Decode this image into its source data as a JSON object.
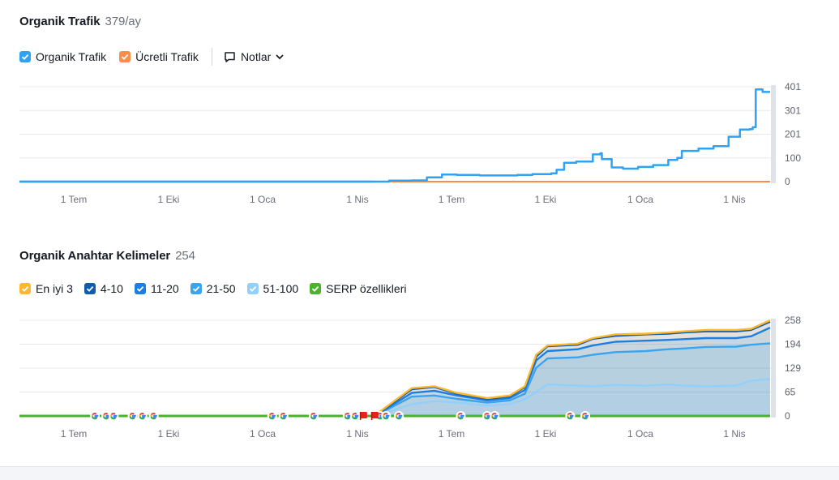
{
  "traffic": {
    "title": "Organik Trafik",
    "count": "379/ay",
    "legend": [
      {
        "label": "Organik Trafik",
        "color": "#2fa2f4"
      },
      {
        "label": "Ücretli Trafik",
        "color": "#fc8d48"
      }
    ],
    "notes_label": "Notlar"
  },
  "keywords": {
    "title": "Organik Anahtar Kelimeler",
    "count": "254",
    "legend": [
      {
        "label": "En iyi 3",
        "color": "#ffb82e"
      },
      {
        "label": "4-10",
        "color": "#0e5db0"
      },
      {
        "label": "11-20",
        "color": "#1a7fe0"
      },
      {
        "label": "21-50",
        "color": "#3aa4ef"
      },
      {
        "label": "51-100",
        "color": "#92d0fb"
      },
      {
        "label": "SERP özellikleri",
        "color": "#4cb22e"
      }
    ]
  },
  "chart_data": [
    {
      "type": "line",
      "x_ticks": [
        "1 Tem",
        "1 Eki",
        "1 Oca",
        "1 Nis",
        "1 Tem",
        "1 Eki",
        "1 Oca",
        "1 Nis"
      ],
      "y_ticks": [
        "401",
        "301",
        "201",
        "100",
        "0"
      ],
      "ylim": [
        0,
        401
      ],
      "grid": true,
      "series": [
        {
          "name": "Organik Trafik",
          "color": "#2fa2f4",
          "points": [
            [
              0,
              0
            ],
            [
              4.7,
              0
            ],
            [
              4.9,
              4
            ],
            [
              5.2,
              5
            ],
            [
              5.4,
              18
            ],
            [
              5.6,
              30
            ],
            [
              5.8,
              28
            ],
            [
              6.1,
              26
            ],
            [
              6.4,
              26
            ],
            [
              6.6,
              28
            ],
            [
              6.8,
              32
            ],
            [
              7.05,
              35
            ],
            [
              7.12,
              50
            ],
            [
              7.22,
              80
            ],
            [
              7.38,
              85
            ],
            [
              7.6,
              115
            ],
            [
              7.7,
              120
            ],
            [
              7.72,
              95
            ],
            [
              7.85,
              60
            ],
            [
              8.0,
              55
            ],
            [
              8.2,
              62
            ],
            [
              8.4,
              70
            ],
            [
              8.6,
              92
            ],
            [
              8.72,
              100
            ],
            [
              8.78,
              130
            ],
            [
              9.0,
              140
            ],
            [
              9.2,
              150
            ],
            [
              9.4,
              190
            ],
            [
              9.55,
              220
            ],
            [
              9.68,
              222
            ],
            [
              9.72,
              230
            ],
            [
              9.76,
              390
            ],
            [
              9.85,
              379
            ],
            [
              9.95,
              379
            ]
          ]
        },
        {
          "name": "Ücretli Trafik",
          "color": "#fc8d48",
          "points": [
            [
              4.7,
              0
            ],
            [
              9.95,
              0
            ]
          ]
        }
      ]
    },
    {
      "type": "area",
      "x_ticks": [
        "1 Tem",
        "1 Eki",
        "1 Oca",
        "1 Nis",
        "1 Tem",
        "1 Eki",
        "1 Oca",
        "1 Nis"
      ],
      "y_ticks": [
        "258",
        "194",
        "129",
        "65",
        "0"
      ],
      "ylim": [
        0,
        258
      ],
      "grid": true,
      "series": [
        {
          "name": "En iyi 3",
          "color": "#ffb82e",
          "points": [
            [
              4.7,
              0
            ],
            [
              4.9,
              30
            ],
            [
              5.2,
              75
            ],
            [
              5.5,
              80
            ],
            [
              5.8,
              62
            ],
            [
              6.2,
              48
            ],
            [
              6.5,
              55
            ],
            [
              6.7,
              80
            ],
            [
              6.85,
              165
            ],
            [
              7.0,
              190
            ],
            [
              7.4,
              195
            ],
            [
              7.6,
              210
            ],
            [
              7.9,
              220
            ],
            [
              8.3,
              222
            ],
            [
              8.6,
              225
            ],
            [
              8.8,
              228
            ],
            [
              9.1,
              232
            ],
            [
              9.5,
              232
            ],
            [
              9.7,
              235
            ],
            [
              9.95,
              258
            ]
          ]
        },
        {
          "name": "4-10",
          "color": "#0e5db0",
          "points": [
            [
              4.7,
              0
            ],
            [
              4.9,
              28
            ],
            [
              5.2,
              72
            ],
            [
              5.5,
              78
            ],
            [
              5.8,
              60
            ],
            [
              6.2,
              46
            ],
            [
              6.5,
              53
            ],
            [
              6.7,
              78
            ],
            [
              6.85,
              160
            ],
            [
              7.0,
              188
            ],
            [
              7.4,
              192
            ],
            [
              7.6,
              208
            ],
            [
              7.9,
              216
            ],
            [
              8.3,
              220
            ],
            [
              8.6,
              222
            ],
            [
              8.8,
              225
            ],
            [
              9.1,
              228
            ],
            [
              9.5,
              228
            ],
            [
              9.7,
              232
            ],
            [
              9.95,
              254
            ]
          ]
        },
        {
          "name": "11-20",
          "color": "#1a7fe0",
          "points": [
            [
              4.7,
              0
            ],
            [
              4.9,
              24
            ],
            [
              5.2,
              62
            ],
            [
              5.5,
              68
            ],
            [
              5.8,
              55
            ],
            [
              6.2,
              42
            ],
            [
              6.5,
              48
            ],
            [
              6.7,
              70
            ],
            [
              6.85,
              150
            ],
            [
              7.0,
              175
            ],
            [
              7.4,
              180
            ],
            [
              7.6,
              190
            ],
            [
              7.9,
              200
            ],
            [
              8.3,
              203
            ],
            [
              8.6,
              205
            ],
            [
              8.8,
              207
            ],
            [
              9.1,
              210
            ],
            [
              9.5,
              210
            ],
            [
              9.7,
              215
            ],
            [
              9.95,
              238
            ]
          ]
        },
        {
          "name": "21-50",
          "color": "#3aa4ef",
          "points": [
            [
              4.7,
              0
            ],
            [
              4.9,
              20
            ],
            [
              5.2,
              52
            ],
            [
              5.5,
              55
            ],
            [
              5.8,
              46
            ],
            [
              6.2,
              36
            ],
            [
              6.5,
              42
            ],
            [
              6.7,
              60
            ],
            [
              6.85,
              130
            ],
            [
              7.0,
              155
            ],
            [
              7.4,
              158
            ],
            [
              7.6,
              165
            ],
            [
              7.9,
              172
            ],
            [
              8.3,
              175
            ],
            [
              8.6,
              180
            ],
            [
              8.8,
              182
            ],
            [
              9.1,
              186
            ],
            [
              9.5,
              187
            ],
            [
              9.7,
              192
            ],
            [
              9.95,
              196
            ]
          ]
        },
        {
          "name": "51-100",
          "color": "#92d0fb",
          "points": [
            [
              4.7,
              0
            ],
            [
              4.9,
              12
            ],
            [
              5.2,
              32
            ],
            [
              5.5,
              40
            ],
            [
              5.8,
              36
            ],
            [
              6.2,
              28
            ],
            [
              6.5,
              32
            ],
            [
              6.7,
              45
            ],
            [
              6.85,
              65
            ],
            [
              7.0,
              85
            ],
            [
              7.4,
              82
            ],
            [
              7.6,
              80
            ],
            [
              7.9,
              84
            ],
            [
              8.3,
              82
            ],
            [
              8.6,
              85
            ],
            [
              8.8,
              82
            ],
            [
              9.1,
              80
            ],
            [
              9.5,
              82
            ],
            [
              9.7,
              95
            ],
            [
              9.95,
              100
            ]
          ]
        },
        {
          "name": "SERP özellikleri",
          "color": "#4cb22e",
          "points": [
            [
              0,
              0
            ],
            [
              9.95,
              0
            ]
          ]
        }
      ],
      "google_markers": [
        1.0,
        1.15,
        1.25,
        1.5,
        1.63,
        1.78,
        3.35,
        3.5,
        3.9,
        4.35,
        4.45,
        4.78,
        4.86,
        5.03,
        5.85,
        6.2,
        6.3,
        7.3,
        7.5
      ],
      "flag_markers": [
        4.56,
        4.71
      ]
    }
  ]
}
